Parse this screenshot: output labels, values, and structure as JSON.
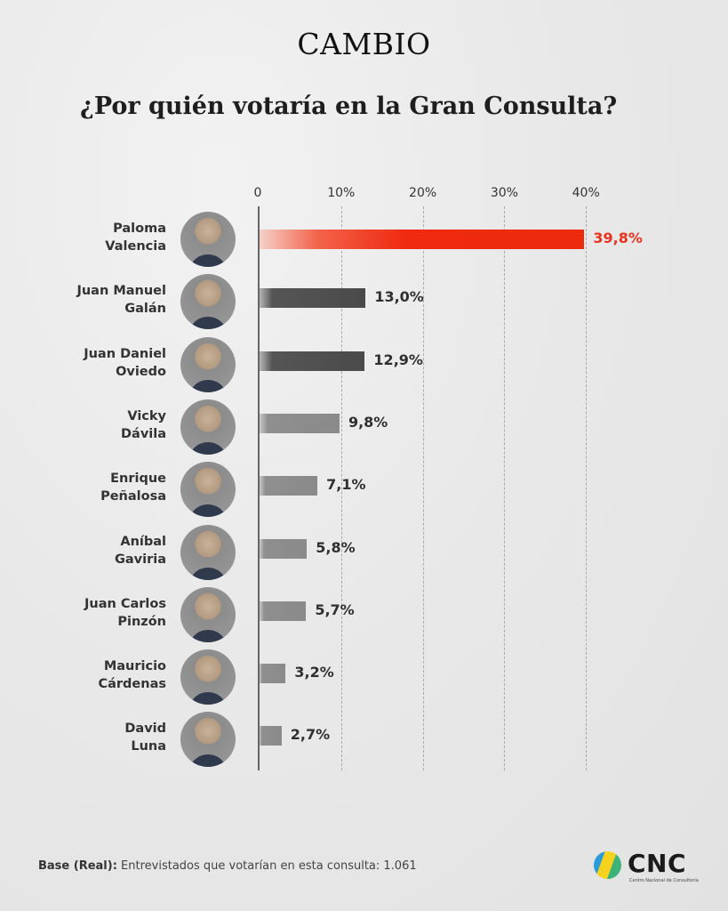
{
  "header": {
    "brand": "CAMBIO",
    "title": "¿Por quién votaría en la Gran Consulta?"
  },
  "axis": {
    "ticks": [
      "0",
      "10%",
      "20%",
      "30%",
      "40%"
    ]
  },
  "candidates": [
    {
      "first": "Paloma",
      "last": "Valencia",
      "value": 39.8,
      "label": "39,8%",
      "style": "red"
    },
    {
      "first": "Juan Manuel",
      "last": "Galán",
      "value": 13.0,
      "label": "13,0%",
      "style": "dark"
    },
    {
      "first": "Juan Daniel",
      "last": "Oviedo",
      "value": 12.9,
      "label": "12,9%",
      "style": "dark"
    },
    {
      "first": "Vicky",
      "last": "Dávila",
      "value": 9.8,
      "label": "9,8%",
      "style": "gray"
    },
    {
      "first": "Enrique",
      "last": "Peñalosa",
      "value": 7.1,
      "label": "7,1%",
      "style": "gray"
    },
    {
      "first": "Aníbal",
      "last": "Gaviria",
      "value": 5.8,
      "label": "5,8%",
      "style": "gray"
    },
    {
      "first": "Juan Carlos",
      "last": "Pinzón",
      "value": 5.7,
      "label": "5,7%",
      "style": "gray"
    },
    {
      "first": "Mauricio",
      "last": "Cárdenas",
      "value": 3.2,
      "label": "3,2%",
      "style": "gray"
    },
    {
      "first": "David",
      "last": "Luna",
      "value": 2.7,
      "label": "2,7%",
      "style": "gray"
    }
  ],
  "footer": {
    "base_label": "Base (Real):",
    "base_text": " Entrevistados que votarían en esta consulta: 1.061"
  },
  "logo": {
    "name": "CNC",
    "subtitle": "Centro Nacional de Consultoría"
  },
  "colors": {
    "highlight": "#EE2A0C",
    "bar_gray": "#8A8A8A",
    "bar_dark": "#4A4A4A"
  },
  "chart_data": {
    "type": "bar",
    "orientation": "horizontal",
    "title": "¿Por quién votaría en la Gran Consulta?",
    "categories": [
      "Paloma Valencia",
      "Juan Manuel Galán",
      "Juan Daniel Oviedo",
      "Vicky Dávila",
      "Enrique Peñalosa",
      "Aníbal Gaviria",
      "Juan Carlos Pinzón",
      "Mauricio Cárdenas",
      "David Luna"
    ],
    "values": [
      39.8,
      13.0,
      12.9,
      9.8,
      7.1,
      5.8,
      5.7,
      3.2,
      2.7
    ],
    "data_labels": [
      "39,8%",
      "13,0%",
      "12,9%",
      "9,8%",
      "7,1%",
      "5,8%",
      "5,7%",
      "3,2%",
      "2,7%"
    ],
    "xlabel": "",
    "ylabel": "",
    "xlim": [
      0,
      40
    ],
    "x_ticks": [
      "0",
      "10%",
      "20%",
      "30%",
      "40%"
    ],
    "grid": "vertical dashed",
    "legend": "none",
    "note": "Base (Real): Entrevistados que votarían en esta consulta: 1.061",
    "source": "CNC"
  }
}
